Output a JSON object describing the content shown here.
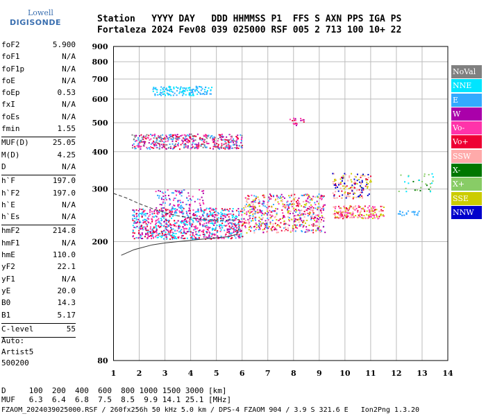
{
  "logo": {
    "line1": "Lowell",
    "line2": "DIGISONDE"
  },
  "header": {
    "row1": "Station   YYYY DAY   DDD HHMMSS P1  FFS S AXN PPS IGA PS",
    "row2": "Fortaleza 2024 Fev08 039 025000 RSF 005 2 713 100 10+ 22"
  },
  "params": {
    "group1": [
      {
        "name": "foF2",
        "value": "5.900"
      },
      {
        "name": "foF1",
        "value": "N/A"
      },
      {
        "name": "foF1p",
        "value": "N/A"
      },
      {
        "name": "foE",
        "value": "N/A"
      },
      {
        "name": "foEp",
        "value": "0.53"
      },
      {
        "name": "fxI",
        "value": "N/A"
      },
      {
        "name": "foEs",
        "value": "N/A"
      },
      {
        "name": "fmin",
        "value": "1.55"
      }
    ],
    "group2": [
      {
        "name": "MUF(D)",
        "value": "25.05"
      },
      {
        "name": "M(D)",
        "value": "4.25"
      },
      {
        "name": "D",
        "value": "N/A"
      }
    ],
    "group3": [
      {
        "name": "h`F",
        "value": "197.0"
      },
      {
        "name": "h`F2",
        "value": "197.0"
      },
      {
        "name": "h`E",
        "value": "N/A"
      },
      {
        "name": "h`Es",
        "value": "N/A"
      }
    ],
    "group4": [
      {
        "name": "hmF2",
        "value": "214.8"
      },
      {
        "name": "hmF1",
        "value": "N/A"
      },
      {
        "name": "hmE",
        "value": "110.0"
      },
      {
        "name": "yF2",
        "value": "22.1"
      },
      {
        "name": "yF1",
        "value": "N/A"
      },
      {
        "name": "yE",
        "value": "20.0"
      },
      {
        "name": "B0",
        "value": "14.3"
      },
      {
        "name": "B1",
        "value": "5.17"
      }
    ],
    "group5": [
      {
        "name": "C-level",
        "value": "55"
      }
    ]
  },
  "auto": {
    "line1": "Auto:",
    "line2": "Artist5",
    "line3": "500200"
  },
  "muf_table": {
    "row1": "D     100  200  400  600  800 1000 1500 3000 [km]",
    "row2": "MUF   6.3  6.4  6.8  7.5  8.5  9.9 14.1 25.1 [MHz]"
  },
  "footer": "FZAOM_2024039025000.RSF / 260fx256h 50 kHz 5.0 km / DPS-4 FZAOM 904 / 3.9 S 321.6 E   Ion2Png 1.3.20",
  "legend": [
    {
      "label": "NoVal",
      "color": "#808080"
    },
    {
      "label": "NNE",
      "color": "#00e5ff"
    },
    {
      "label": "E",
      "color": "#33aaff"
    },
    {
      "label": "W",
      "color": "#aa00aa"
    },
    {
      "label": "Vo-",
      "color": "#ff33aa"
    },
    {
      "label": "Vo+",
      "color": "#ee0033"
    },
    {
      "label": "SSW",
      "color": "#ffaaaa"
    },
    {
      "label": "X-",
      "color": "#007700"
    },
    {
      "label": "X+",
      "color": "#88cc66"
    },
    {
      "label": "SSE",
      "color": "#cccc00"
    },
    {
      "label": "NNW",
      "color": "#0000cc"
    }
  ],
  "chart_data": {
    "type": "scatter",
    "xlim": [
      1,
      14
    ],
    "ylim": [
      80,
      900
    ],
    "y_scale": "log",
    "x_ticks": [
      1,
      2,
      3,
      4,
      5,
      6,
      7,
      8,
      9,
      10,
      11,
      12,
      13,
      14
    ],
    "y_ticks": [
      80,
      200,
      300,
      400,
      500,
      600,
      700,
      800,
      900
    ],
    "grid": true,
    "legend_placement": "right",
    "clusters": [
      {
        "x": [
          1.7,
          6.0
        ],
        "y": [
          205,
          260
        ],
        "count": 900,
        "colors": [
          "#33aaff",
          "#00e5ff",
          "#ee0033",
          "#ff33aa",
          "#aa00aa"
        ]
      },
      {
        "x": [
          6.0,
          9.2
        ],
        "y": [
          215,
          290
        ],
        "count": 600,
        "colors": [
          "#ee0033",
          "#ff33aa",
          "#aa00aa",
          "#ffaaaa",
          "#33aaff",
          "#cccc00"
        ]
      },
      {
        "x": [
          9.5,
          11.5
        ],
        "y": [
          240,
          265
        ],
        "count": 200,
        "colors": [
          "#ee0033",
          "#ffaaaa",
          "#ff33aa",
          "#cccc00"
        ]
      },
      {
        "x": [
          9.5,
          11.0
        ],
        "y": [
          280,
          340
        ],
        "count": 150,
        "colors": [
          "#cccc00",
          "#ee0033",
          "#0000cc",
          "#ffaaaa"
        ]
      },
      {
        "x": [
          1.7,
          6.0
        ],
        "y": [
          410,
          460
        ],
        "count": 450,
        "colors": [
          "#ee0033",
          "#33aaff",
          "#aa00aa",
          "#ff33aa",
          "#808080"
        ]
      },
      {
        "x": [
          2.5,
          4.8
        ],
        "y": [
          620,
          665
        ],
        "count": 140,
        "colors": [
          "#33aaff",
          "#00e5ff"
        ]
      },
      {
        "x": [
          7.8,
          8.4
        ],
        "y": [
          490,
          520
        ],
        "count": 20,
        "colors": [
          "#ee0033",
          "#aa00aa",
          "#ff33aa"
        ]
      },
      {
        "x": [
          12.0,
          12.9
        ],
        "y": [
          245,
          255
        ],
        "count": 20,
        "colors": [
          "#33aaff"
        ]
      },
      {
        "x": [
          12.0,
          13.5
        ],
        "y": [
          295,
          340
        ],
        "count": 30,
        "colors": [
          "#007700",
          "#88cc66",
          "#00e5ff"
        ]
      },
      {
        "x": [
          2.6,
          4.5
        ],
        "y": [
          260,
          300
        ],
        "count": 100,
        "colors": [
          "#aa00aa",
          "#ff33aa",
          "#33aaff"
        ]
      }
    ],
    "traces": [
      {
        "style": "dashed",
        "x": [
          1.0,
          1.5,
          2.0,
          2.5,
          3.0,
          3.5,
          4.0,
          4.5,
          5.0,
          5.5,
          5.9
        ],
        "y": [
          290,
          280,
          268,
          258,
          250,
          244,
          240,
          237,
          236,
          236,
          237
        ]
      },
      {
        "style": "solid",
        "x": [
          1.3,
          1.8,
          2.5,
          3.0,
          3.5,
          4.0,
          4.5,
          5.0,
          5.5,
          5.8,
          5.9
        ],
        "y": [
          180,
          188,
          195,
          198,
          200,
          202,
          204,
          206,
          208,
          212,
          225
        ]
      }
    ]
  }
}
